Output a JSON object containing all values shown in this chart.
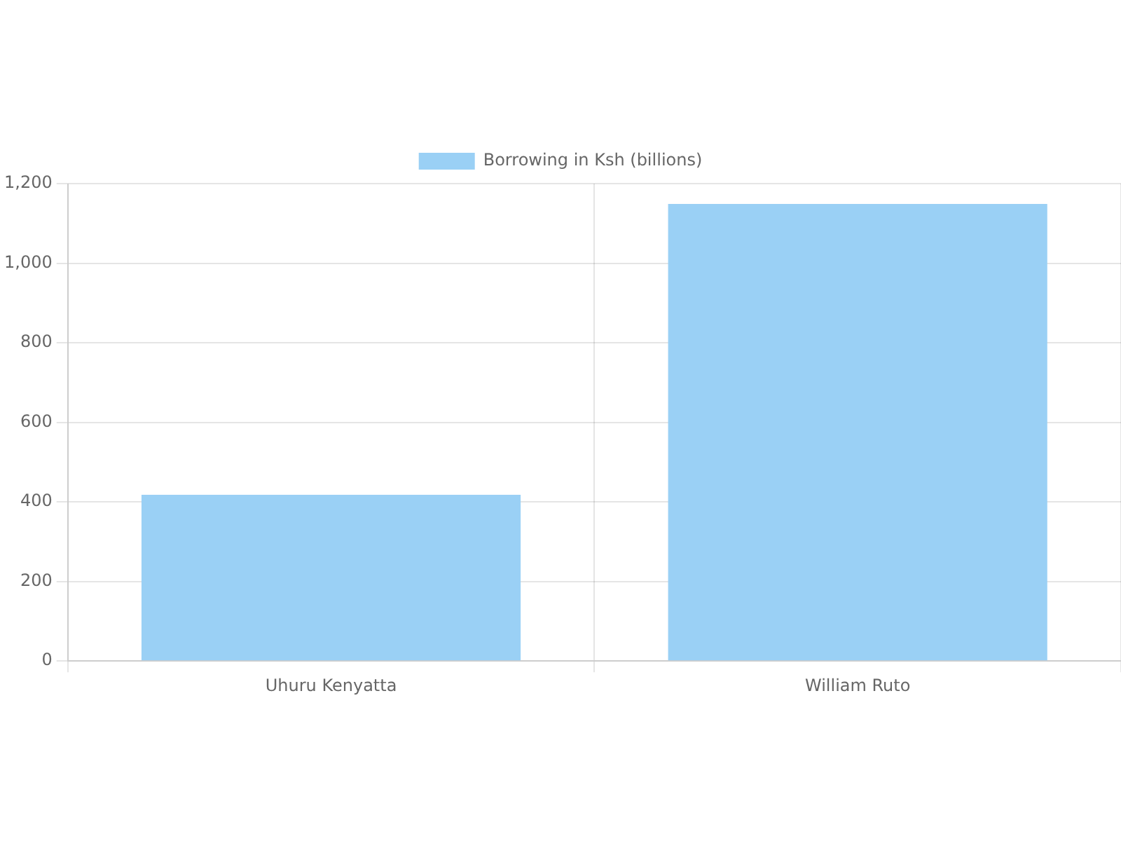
{
  "chart_data": {
    "type": "bar",
    "categories": [
      "Uhuru Kenyatta",
      "William Ruto"
    ],
    "series": [
      {
        "name": "Borrowing in Ksh (billions)",
        "color": "#9ad0f5",
        "values": [
          418,
          1149
        ]
      }
    ],
    "ylim": [
      0,
      1200
    ],
    "yticks": [
      0,
      200,
      400,
      600,
      800,
      {
        "value": 1000,
        "label": "1,000"
      },
      {
        "value": 1200,
        "label": "1,200"
      }
    ],
    "grid": true,
    "legend": "top"
  }
}
